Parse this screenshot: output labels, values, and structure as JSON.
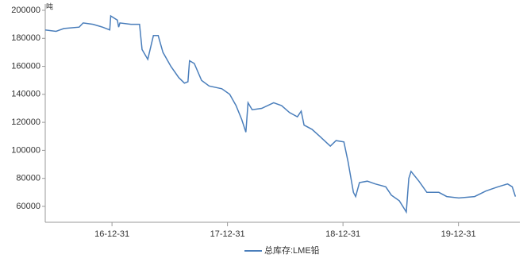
{
  "chart_data": {
    "type": "line",
    "unit": "吨",
    "x": [
      "16-06-03",
      "16-07-07",
      "16-08-01",
      "16-09-18",
      "16-10-01",
      "16-11-01",
      "16-12-01",
      "16-12-24",
      "16-12-27",
      "17-01-17",
      "17-01-21",
      "17-01-25",
      "17-03-01",
      "17-03-28",
      "17-04-05",
      "17-04-23",
      "17-05-11",
      "17-05-26",
      "17-06-10",
      "17-07-05",
      "17-07-30",
      "17-08-17",
      "17-08-28",
      "17-09-02",
      "17-09-17",
      "17-10-10",
      "17-11-03",
      "17-12-13",
      "18-01-07",
      "18-01-27",
      "18-02-14",
      "18-02-27",
      "18-03-06",
      "18-03-19",
      "18-04-18",
      "18-05-26",
      "18-06-20",
      "18-07-15",
      "18-08-09",
      "18-08-21",
      "18-08-30",
      "18-09-24",
      "18-10-19",
      "18-11-21",
      "18-12-09",
      "19-01-03",
      "19-01-16",
      "19-02-02",
      "19-02-09",
      "19-02-21",
      "19-03-18",
      "19-04-12",
      "19-05-15",
      "19-06-02",
      "19-06-27",
      "19-07-19",
      "19-07-27",
      "19-08-03",
      "19-08-28",
      "19-09-22",
      "19-10-30",
      "19-11-24",
      "20-01-01",
      "20-02-20",
      "20-03-27",
      "20-05-04",
      "20-06-03",
      "20-06-18",
      "20-06-28"
    ],
    "series": [
      {
        "name": "总库存:LME铅",
        "color": "#4a7ebb",
        "values": [
          186000,
          185000,
          187000,
          188000,
          191000,
          190000,
          188000,
          186000,
          196000,
          193000,
          188000,
          191000,
          190000,
          190000,
          172000,
          165000,
          182000,
          182000,
          170000,
          160000,
          152000,
          148000,
          149000,
          164000,
          162000,
          150000,
          146000,
          144000,
          140000,
          132000,
          122000,
          113000,
          134000,
          129000,
          130000,
          134000,
          132000,
          127000,
          124000,
          128000,
          118000,
          115000,
          110000,
          103000,
          107000,
          106000,
          92000,
          70000,
          67000,
          77000,
          78000,
          76000,
          74000,
          68000,
          64000,
          56000,
          80000,
          85000,
          78000,
          70000,
          70000,
          67000,
          66000,
          67000,
          71000,
          74000,
          76000,
          74000,
          67000
        ]
      }
    ],
    "xlim": [
      "16-06-03",
      "20-07-12"
    ],
    "xticks": [
      "16-12-31",
      "17-12-31",
      "18-12-31",
      "19-12-31"
    ],
    "ylim": [
      50000,
      200000
    ],
    "yticks": [
      60000,
      80000,
      100000,
      120000,
      140000,
      160000,
      180000,
      200000
    ],
    "legend": "bottom"
  }
}
